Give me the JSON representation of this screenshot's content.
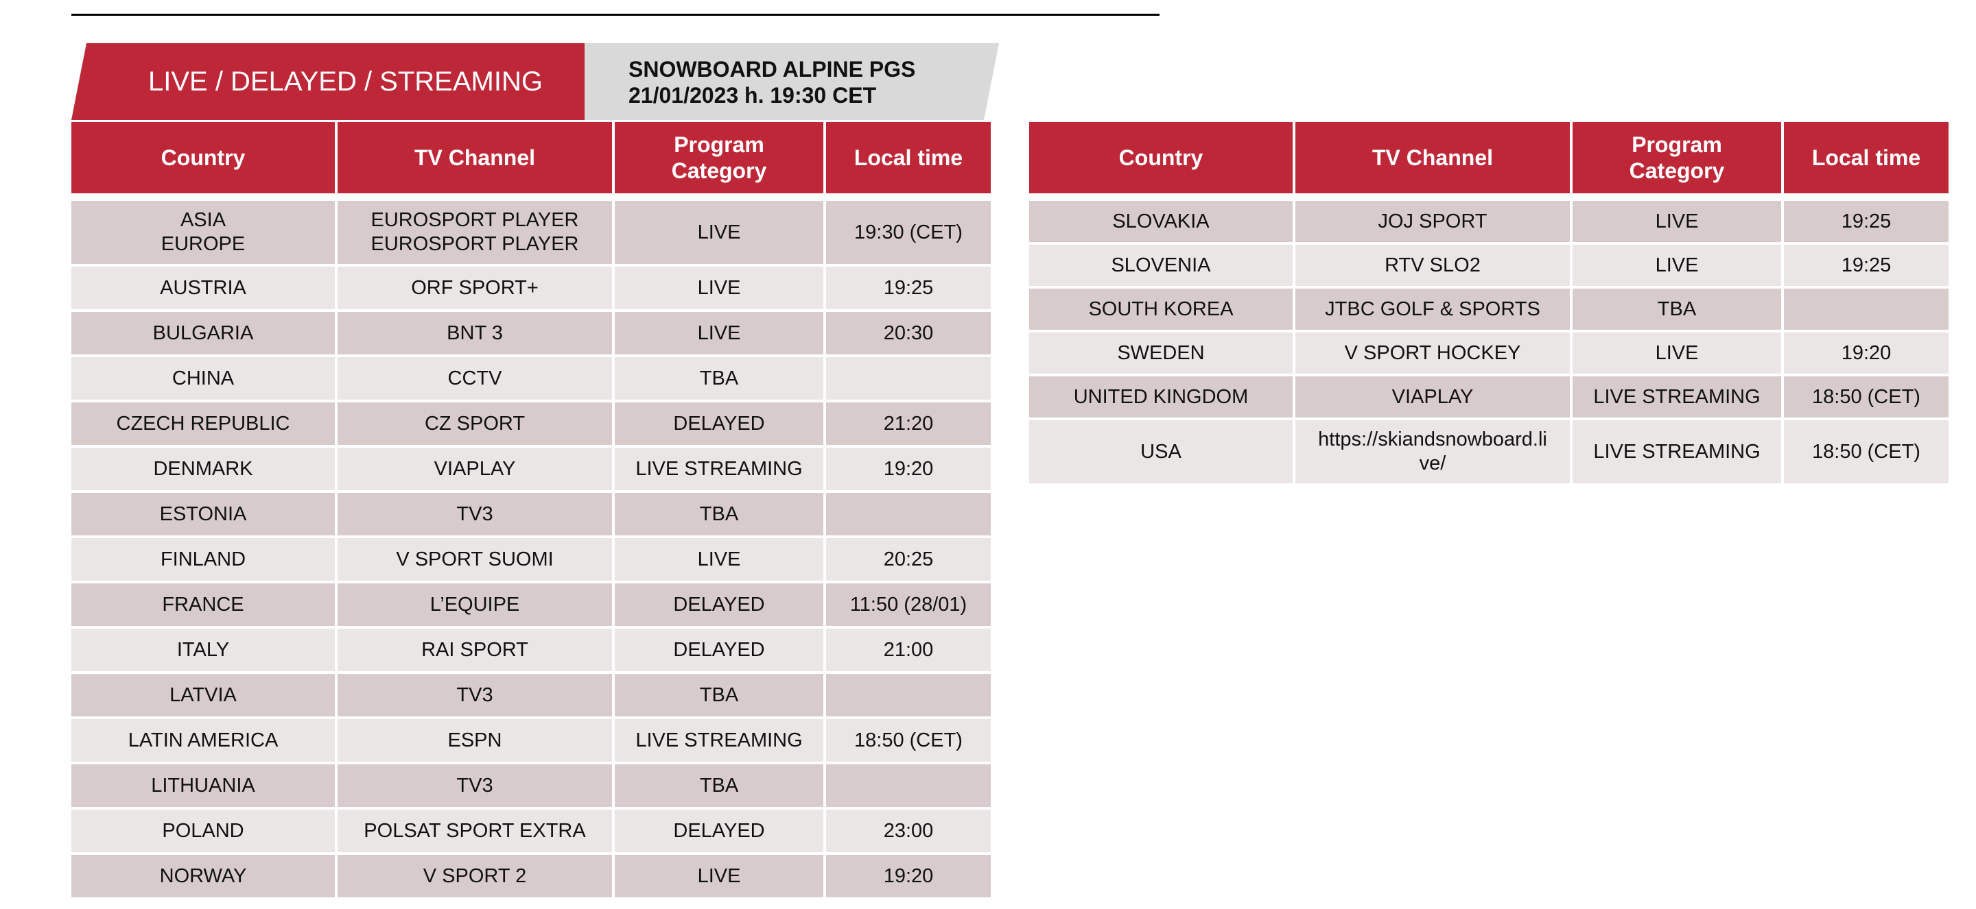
{
  "banner": {
    "label": "LIVE / DELAYED / STREAMING",
    "event_title": "SNOWBOARD ALPINE PGS",
    "event_datetime": "21/01/2023 h. 19:30 CET"
  },
  "table_headers": {
    "country": "Country",
    "channel": "TV Channel",
    "category": "Program\nCategory",
    "local_time": "Local time"
  },
  "left_table": [
    {
      "country": "ASIA\nEUROPE",
      "channel": "EUROSPORT PLAYER\nEUROSPORT PLAYER",
      "category": "LIVE",
      "time": "19:30 (CET)"
    },
    {
      "country": "AUSTRIA",
      "channel": "ORF SPORT+",
      "category": "LIVE",
      "time": "19:25"
    },
    {
      "country": "BULGARIA",
      "channel": "BNT 3",
      "category": "LIVE",
      "time": "20:30"
    },
    {
      "country": "CHINA",
      "channel": "CCTV",
      "category": "TBA",
      "time": ""
    },
    {
      "country": "CZECH REPUBLIC",
      "channel": "CZ SPORT",
      "category": "DELAYED",
      "time": "21:20"
    },
    {
      "country": "DENMARK",
      "channel": "VIAPLAY",
      "category": "LIVE STREAMING",
      "time": "19:20"
    },
    {
      "country": "ESTONIA",
      "channel": "TV3",
      "category": "TBA",
      "time": ""
    },
    {
      "country": "FINLAND",
      "channel": "V SPORT SUOMI",
      "category": "LIVE",
      "time": "20:25"
    },
    {
      "country": "FRANCE",
      "channel": "L’EQUIPE",
      "category": "DELAYED",
      "time": "11:50 (28/01)"
    },
    {
      "country": "ITALY",
      "channel": "RAI SPORT",
      "category": "DELAYED",
      "time": "21:00"
    },
    {
      "country": "LATVIA",
      "channel": "TV3",
      "category": "TBA",
      "time": ""
    },
    {
      "country": "LATIN AMERICA",
      "channel": "ESPN",
      "category": "LIVE STREAMING",
      "time": "18:50 (CET)"
    },
    {
      "country": "LITHUANIA",
      "channel": "TV3",
      "category": "TBA",
      "time": ""
    },
    {
      "country": "POLAND",
      "channel": "POLSAT SPORT EXTRA",
      "category": "DELAYED",
      "time": "23:00"
    },
    {
      "country": "NORWAY",
      "channel": "V SPORT 2",
      "category": "LIVE",
      "time": "19:20"
    }
  ],
  "right_table": [
    {
      "country": "SLOVAKIA",
      "channel": "JOJ SPORT",
      "category": "LIVE",
      "time": "19:25"
    },
    {
      "country": "SLOVENIA",
      "channel": "RTV SLO2",
      "category": "LIVE",
      "time": "19:25"
    },
    {
      "country": "SOUTH KOREA",
      "channel": "JTBC GOLF & SPORTS",
      "category": "TBA",
      "time": ""
    },
    {
      "country": "SWEDEN",
      "channel": "V SPORT HOCKEY",
      "category": "LIVE",
      "time": "19:20"
    },
    {
      "country": "UNITED KINGDOM",
      "channel": "VIAPLAY",
      "category": "LIVE STREAMING",
      "time": "18:50 (CET)"
    },
    {
      "country": "USA",
      "channel": "https://skiandsnowboard.li\nve/",
      "category": "LIVE STREAMING",
      "time": "18:50 (CET)"
    }
  ],
  "colors": {
    "header_red": "#bd2738",
    "banner_grey": "#d9d9d9",
    "row_dark": "#d8cbcb",
    "row_light": "#eae6e6"
  }
}
